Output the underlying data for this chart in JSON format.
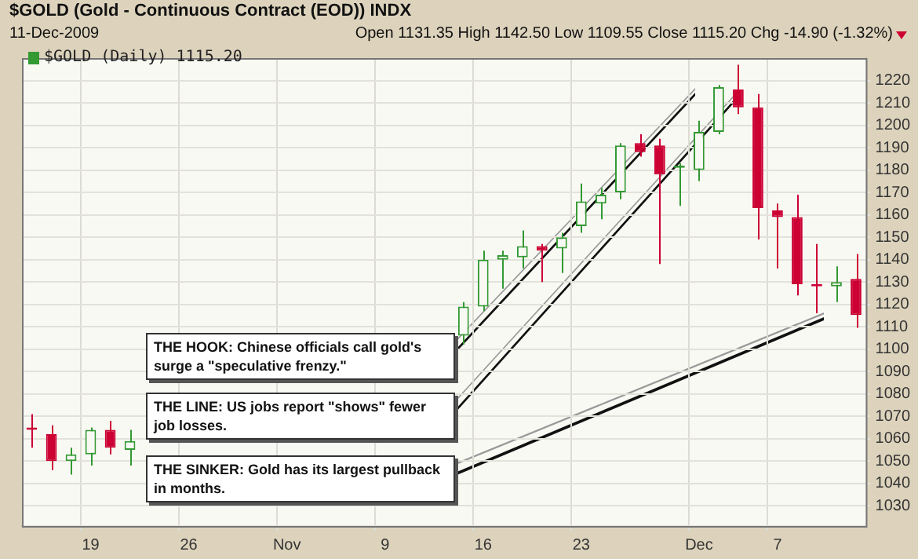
{
  "chart_data": {
    "type": "candlestick",
    "title": "$GOLD (Gold - Continuous Contract (EOD)) INDX",
    "subtitle": "11-Dec-2009",
    "annotations": [
      "Open 1131.35 High 1142.50 Low 1109.55 Close 1115.20 Chg -14.90 (-1.32%)",
      "THE HOOK: Chinese officials call gold's surge a \"speculative frenzy.\"",
      "THE LINE: US jobs report \"shows\" fewer job losses.",
      "THE SINKER: Gold has its largest pullback in months."
    ],
    "categories": [
      null,
      null,
      null,
      "19",
      null,
      null,
      null,
      null,
      "26",
      null,
      null,
      null,
      null,
      "Nov",
      null,
      null,
      null,
      null,
      "9",
      null,
      null,
      null,
      null,
      "16",
      null,
      null,
      null,
      null,
      "23",
      null,
      null,
      null,
      null,
      null,
      "Dec",
      null,
      null,
      null,
      "7",
      null,
      null,
      null,
      null
    ],
    "series": [
      {
        "name": "$GOLD (Daily) 1115.20",
        "color": "#339933",
        "ohlc": [
          [
            1065,
            1071,
            1056,
            1064
          ],
          [
            1062,
            1066,
            1046,
            1050
          ],
          [
            1050,
            1056,
            1044,
            1053
          ],
          [
            1053,
            1065,
            1048,
            1064
          ],
          [
            1064,
            1068,
            1053,
            1056
          ],
          [
            1055,
            1064,
            1048,
            1059
          ],
          null,
          null,
          null,
          null,
          null,
          null,
          null,
          null,
          null,
          null,
          null,
          null,
          null,
          null,
          null,
          null,
          [
            1106,
            1121,
            1102,
            1119
          ],
          [
            1119,
            1144,
            1117,
            1140
          ],
          [
            1140,
            1144,
            1127,
            1142
          ],
          [
            1141,
            1153,
            1136,
            1146
          ],
          [
            1146,
            1147,
            1130,
            1144
          ],
          [
            1145,
            1152,
            1134,
            1150
          ],
          [
            1155,
            1174,
            1152,
            1166
          ],
          [
            1165,
            1172,
            1158,
            1169
          ],
          [
            1170,
            1192,
            1167,
            1191
          ],
          [
            1192,
            1196,
            1186,
            1188
          ],
          [
            1191,
            1194,
            1138,
            1178
          ],
          [
            1181,
            1183,
            1164,
            1182
          ],
          [
            1180,
            1202,
            1175,
            1197
          ],
          [
            1197,
            1218,
            1196,
            1217
          ],
          [
            1216,
            1227,
            1205,
            1208
          ],
          [
            1208,
            1214,
            1149,
            1163
          ],
          [
            1162,
            1165,
            1136,
            1159
          ],
          [
            1159,
            1169,
            1124,
            1129
          ],
          [
            1129,
            1147,
            1116,
            1128
          ],
          [
            1128,
            1137,
            1121,
            1130
          ],
          [
            1131.35,
            1142.5,
            1109.55,
            1115.2
          ]
        ],
        "colors": [
          "#cc0033",
          "#cc0033",
          "#339933",
          "#339933",
          "#cc0033",
          "#339933",
          null,
          null,
          null,
          null,
          null,
          null,
          null,
          null,
          null,
          null,
          null,
          null,
          null,
          null,
          null,
          null,
          "#339933",
          "#339933",
          "#339933",
          "#339933",
          "#cc0033",
          "#339933",
          "#339933",
          "#339933",
          "#339933",
          "#cc0033",
          "#cc0033",
          "#339933",
          "#339933",
          "#339933",
          "#cc0033",
          "#cc0033",
          "#cc0033",
          "#cc0033",
          "#cc0033",
          "#339933",
          "#cc0033"
        ]
      }
    ],
    "ylim": [
      1021,
      1230
    ],
    "yticks": [
      1030,
      1040,
      1050,
      1060,
      1070,
      1080,
      1090,
      1100,
      1110,
      1120,
      1130,
      1140,
      1150,
      1160,
      1170,
      1180,
      1190,
      1200,
      1210,
      1220
    ],
    "grid": true,
    "legend": "top left"
  }
}
